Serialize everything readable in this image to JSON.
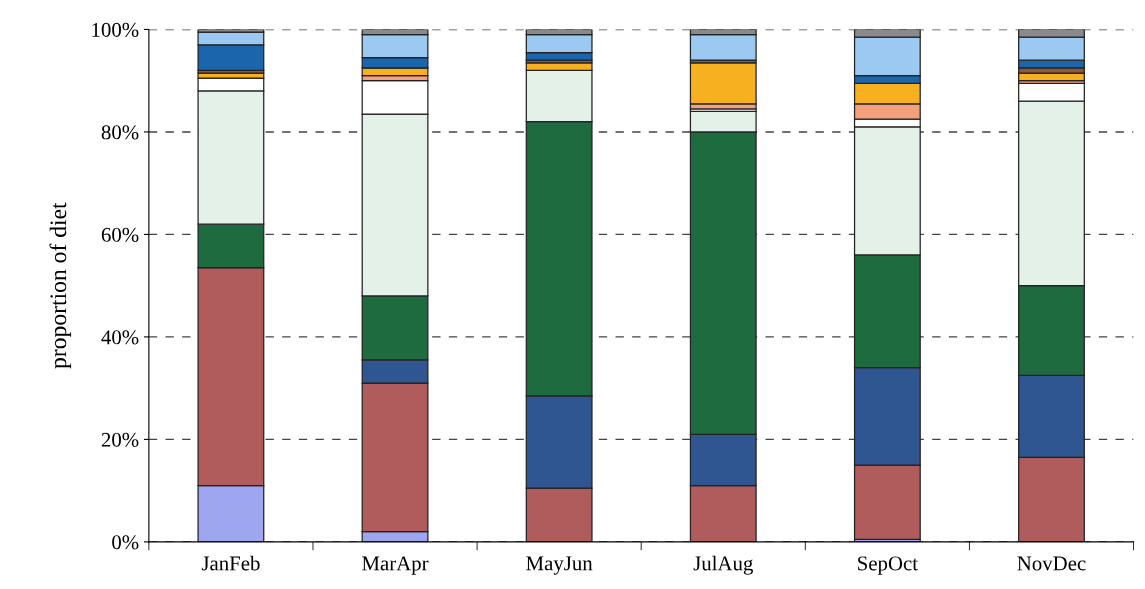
{
  "chart_data": {
    "type": "bar",
    "stacked": true,
    "ylabel": "proportion of diet",
    "categories": [
      "JanFeb",
      "MarApr",
      "MayJun",
      "JulAug",
      "SepOct",
      "NovDec"
    ],
    "series": [
      {
        "color": "#9fa6f0",
        "values": [
          11,
          2,
          0,
          0,
          0.5,
          0
        ]
      },
      {
        "color": "#b05c5c",
        "values": [
          42.5,
          29,
          10.5,
          11,
          14.5,
          16.5
        ]
      },
      {
        "color": "#2f5690",
        "values": [
          0,
          4.5,
          18,
          10,
          19,
          16
        ]
      },
      {
        "color": "#1e6b40",
        "values": [
          8.5,
          12.5,
          53.5,
          59,
          22,
          17.5
        ]
      },
      {
        "color": "#e4f1e8",
        "values": [
          26,
          35.5,
          10,
          4,
          25,
          36
        ]
      },
      {
        "color": "#ffffff",
        "values": [
          2.5,
          6.5,
          0,
          0.5,
          1.5,
          3.5
        ]
      },
      {
        "color": "#f4a07c",
        "values": [
          0,
          1,
          0,
          1,
          3,
          0.5
        ]
      },
      {
        "color": "#f7b020",
        "values": [
          1,
          1.5,
          1.5,
          8,
          4,
          1.5
        ]
      },
      {
        "color": "#8a5a3a",
        "values": [
          0.5,
          0,
          0.5,
          0.5,
          0,
          1
        ]
      },
      {
        "color": "#1b65ad",
        "values": [
          5,
          2,
          1.5,
          0,
          1.5,
          1.5
        ]
      },
      {
        "color": "#9cc9f2",
        "values": [
          2.5,
          4.5,
          3.5,
          5,
          7.5,
          4.5
        ]
      },
      {
        "color": "#8a8a8a",
        "values": [
          0.5,
          1,
          1,
          1,
          1.5,
          1.5
        ]
      }
    ],
    "ylim": [
      0,
      100
    ],
    "yticks": [
      {
        "value": 0,
        "label": "0%"
      },
      {
        "value": 20,
        "label": "20%"
      },
      {
        "value": 40,
        "label": "40%"
      },
      {
        "value": 60,
        "label": "60%"
      },
      {
        "value": 80,
        "label": "80%"
      },
      {
        "value": 100,
        "label": "100%"
      }
    ],
    "grid": "y",
    "line_style": "dashed"
  }
}
